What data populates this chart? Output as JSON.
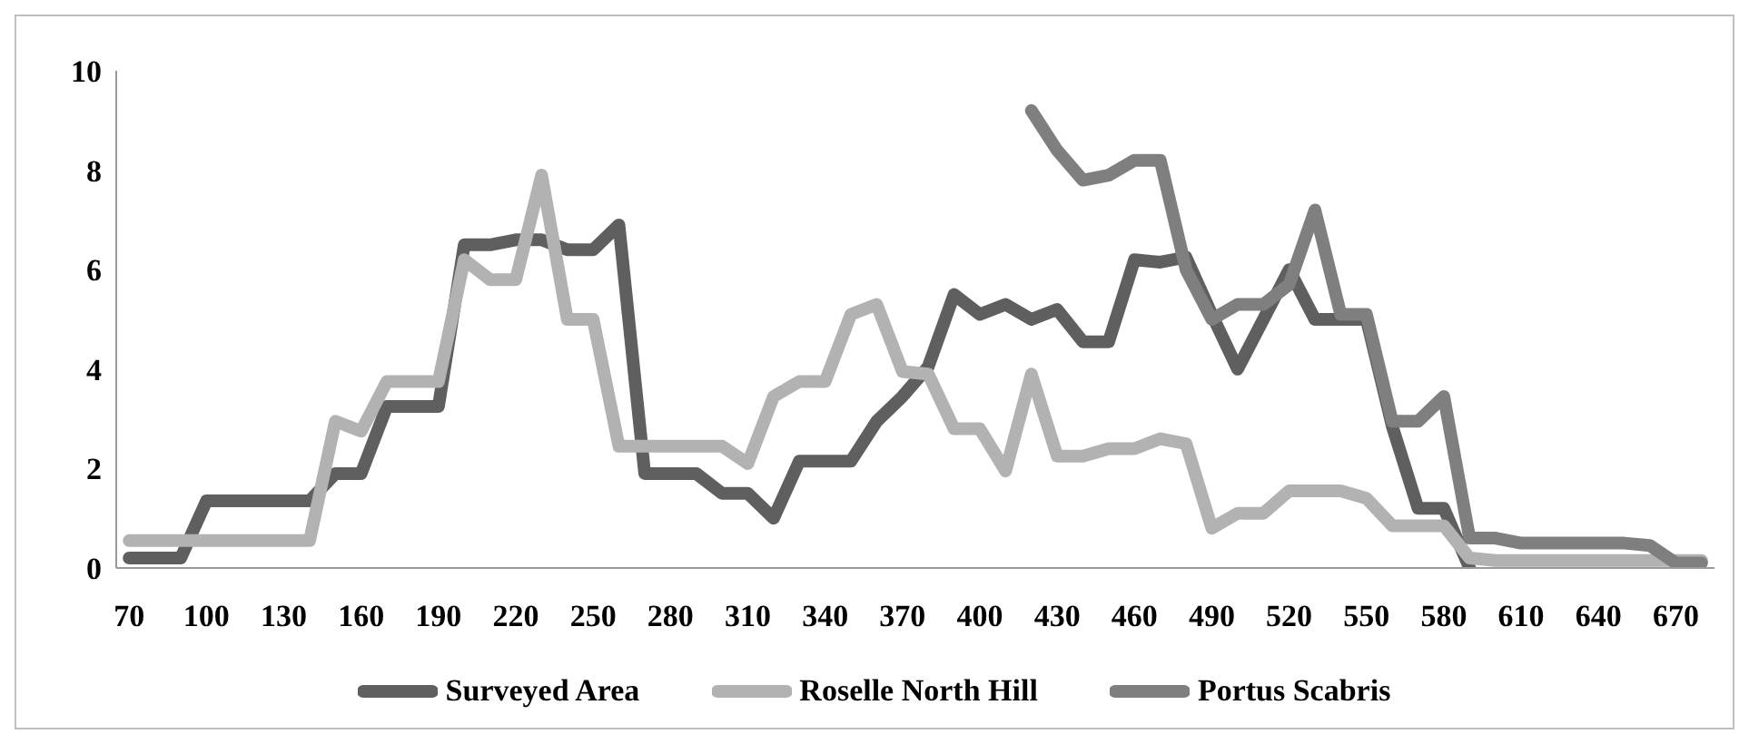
{
  "chart_data": {
    "type": "line",
    "x": [
      70,
      80,
      90,
      100,
      110,
      120,
      130,
      140,
      150,
      160,
      170,
      180,
      190,
      200,
      210,
      220,
      230,
      240,
      250,
      260,
      270,
      280,
      290,
      300,
      310,
      320,
      330,
      340,
      350,
      360,
      370,
      380,
      390,
      400,
      410,
      420,
      430,
      440,
      450,
      460,
      470,
      480,
      490,
      500,
      510,
      520,
      530,
      540,
      550,
      560,
      570,
      580,
      590,
      600,
      610,
      620,
      630,
      640,
      650,
      660,
      670,
      680
    ],
    "series": [
      {
        "name": "Surveyed Area",
        "color": "#5f5f5f",
        "values": [
          0.2,
          0.2,
          0.2,
          1.35,
          1.35,
          1.35,
          1.35,
          1.35,
          1.9,
          1.9,
          3.25,
          3.25,
          3.25,
          6.5,
          6.5,
          6.6,
          6.6,
          6.4,
          6.4,
          6.9,
          1.9,
          1.9,
          1.9,
          1.5,
          1.5,
          1.0,
          2.15,
          2.15,
          2.15,
          2.95,
          3.45,
          4.05,
          5.5,
          5.1,
          5.3,
          5.0,
          5.2,
          4.55,
          4.55,
          6.2,
          6.15,
          6.25,
          5.1,
          4.0,
          5.0,
          6.0,
          5.0,
          5.0,
          5.0,
          2.85,
          1.2,
          1.2,
          0,
          null,
          null,
          null,
          null,
          null,
          null,
          null,
          null,
          null
        ]
      },
      {
        "name": "Roselle North Hill",
        "color": "#b2b2b2",
        "values": [
          0.55,
          0.55,
          0.55,
          0.55,
          0.55,
          0.55,
          0.55,
          0.55,
          2.95,
          2.75,
          3.75,
          3.75,
          3.75,
          6.2,
          5.8,
          5.8,
          7.9,
          5.0,
          5.0,
          2.45,
          2.45,
          2.45,
          2.45,
          2.45,
          2.1,
          3.45,
          3.75,
          3.75,
          5.1,
          5.3,
          3.95,
          3.9,
          2.8,
          2.8,
          1.95,
          3.9,
          2.25,
          2.25,
          2.4,
          2.4,
          2.6,
          2.5,
          0.8,
          1.1,
          1.1,
          1.55,
          1.55,
          1.55,
          1.4,
          0.85,
          0.85,
          0.85,
          0.2,
          0.15,
          0.15,
          0.15,
          0.15,
          0.15,
          0.15,
          0.15,
          0.15,
          0.15
        ]
      },
      {
        "name": "Portus Scabris",
        "color": "#7f7f7f",
        "values": [
          null,
          null,
          null,
          null,
          null,
          null,
          null,
          null,
          null,
          null,
          null,
          null,
          null,
          null,
          null,
          null,
          null,
          null,
          null,
          null,
          null,
          null,
          null,
          null,
          null,
          null,
          null,
          null,
          null,
          null,
          null,
          null,
          null,
          null,
          null,
          9.2,
          8.4,
          7.8,
          7.9,
          8.2,
          8.2,
          6.0,
          5.0,
          5.3,
          5.3,
          5.7,
          7.2,
          5.1,
          5.1,
          2.95,
          2.95,
          3.45,
          0.6,
          0.6,
          0.5,
          0.5,
          0.5,
          0.5,
          0.5,
          0.45,
          0.1,
          0.1
        ]
      }
    ],
    "xlim": [
      65,
      685
    ],
    "xticks": [
      70,
      100,
      130,
      160,
      190,
      220,
      250,
      280,
      310,
      340,
      370,
      400,
      430,
      460,
      490,
      520,
      550,
      580,
      610,
      640,
      670
    ],
    "ylim": [
      0,
      10
    ],
    "yticks": [
      0,
      2,
      4,
      6,
      8,
      10
    ],
    "legend": "bottom",
    "marker": "none",
    "line_style": "solid"
  }
}
